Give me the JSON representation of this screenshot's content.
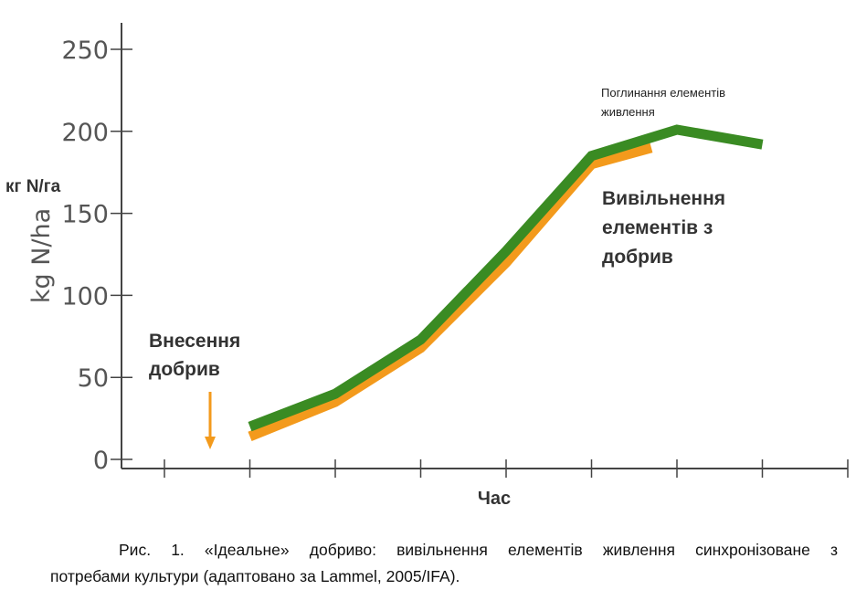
{
  "chart_data": {
    "type": "line",
    "ylabel": "kg N/ha",
    "ylabel_ua": "кг N/га",
    "xlabel": "Час",
    "ylim": [
      0,
      250
    ],
    "yticks": [
      0,
      50,
      100,
      150,
      200,
      250
    ],
    "ytick_labels": [
      "0",
      "50",
      "100",
      "150",
      "200",
      "250"
    ],
    "x_tick_count": 9,
    "grid": false,
    "series": [
      {
        "name": "Поглинання елементів живлення",
        "color": "#3a8b23",
        "x": [
          1,
          2,
          3,
          4,
          5,
          6,
          7
        ],
        "values": [
          20,
          40,
          73,
          127,
          185,
          201,
          192
        ]
      },
      {
        "name": "Вивільнення елементів з добрив",
        "color": "#f39a1c",
        "x": [
          1,
          2,
          3,
          4,
          5,
          5.7
        ],
        "values": [
          14,
          35,
          68,
          120,
          180,
          190
        ]
      }
    ],
    "annotations": {
      "uptake": [
        "Поглинання елементів",
        "живлення"
      ],
      "release": [
        "Вивільнення",
        "елементів з",
        "добрив"
      ],
      "application": [
        "Внесення",
        "добрив"
      ]
    },
    "arrow_color": "#f39a1c"
  },
  "caption": {
    "line1": "Рис. 1. «Ідеальне» добриво: вивільнення елементів живлення синхронізоване з",
    "line2": "потребами культури (адаптовано за Lammel, 2005/IFA)."
  }
}
